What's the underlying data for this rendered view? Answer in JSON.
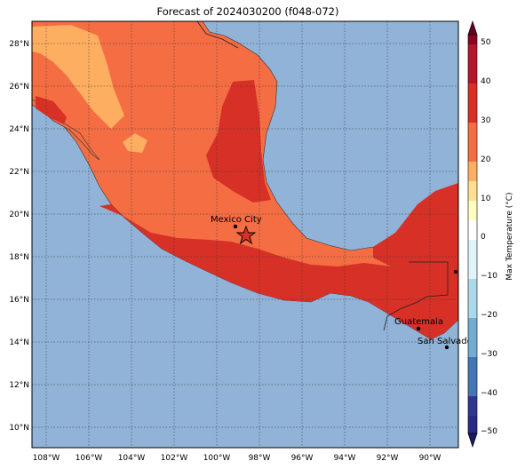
{
  "title": "Forecast of 2024030200 (f048-072)",
  "colorbar": {
    "label": "Max Temperature (°C)",
    "ticks": [
      "50",
      "40",
      "30",
      "20",
      "10",
      "0",
      "−10",
      "−20",
      "−30",
      "−40",
      "−50"
    ]
  },
  "axes": {
    "x_ticks": [
      "108°W",
      "106°W",
      "104°W",
      "102°W",
      "100°W",
      "98°W",
      "96°W",
      "94°W",
      "92°W",
      "90°W"
    ],
    "y_ticks": [
      "28°N",
      "26°N",
      "24°N",
      "22°N",
      "20°N",
      "18°N",
      "16°N",
      "14°N",
      "12°N",
      "10°N"
    ]
  },
  "cities": [
    {
      "name": "Mexico City"
    },
    {
      "name": "Guatemala"
    },
    {
      "name": "San Salvador"
    }
  ],
  "colors": {
    "ocean": "#91b3d7",
    "c30_40": "#d73027",
    "c20_30": "#f46d43",
    "c10_20": "#fdae61"
  }
}
